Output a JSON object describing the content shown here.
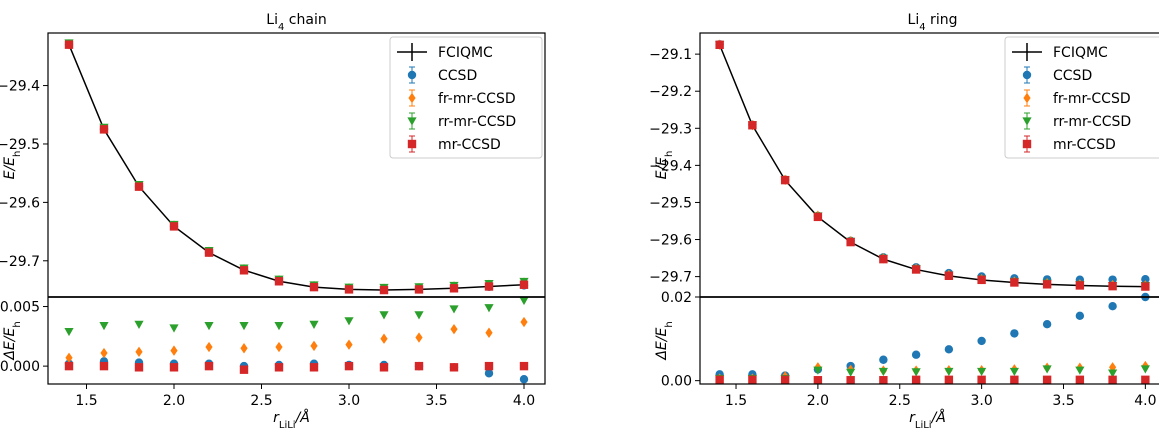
{
  "chart_data": [
    {
      "type": "scatter",
      "title_base": "Li",
      "title_sub": "4",
      "title_rest": " chain",
      "xlabel_base": "r",
      "xlabel_sub": "LiLi",
      "xlabel_rest": "/Å",
      "ylabel_top_base": "E/E",
      "ylabel_top_sub": "h",
      "ylabel_bottom_base": "ΔE/E",
      "ylabel_bottom_sub": "h",
      "xlim": [
        1.28,
        4.12
      ],
      "xticks": [
        1.5,
        2.0,
        2.5,
        3.0,
        3.5,
        4.0
      ],
      "xtick_labels": [
        "1.5",
        "2.0",
        "2.5",
        "3.0",
        "3.5",
        "4.0"
      ],
      "top_ylim": [
        -29.762,
        -29.31
      ],
      "top_yticks": [
        -29.4,
        -29.5,
        -29.6,
        -29.7
      ],
      "top_ytick_labels": [
        "−29.4",
        "−29.5",
        "−29.6",
        "−29.7"
      ],
      "bottom_ylim": [
        -0.0015,
        0.0058
      ],
      "bottom_yticks": [
        0.0,
        0.005
      ],
      "bottom_ytick_labels": [
        "0.000",
        "0.005"
      ],
      "legend_position": "top-right",
      "x": [
        1.4,
        1.6,
        1.8,
        2.0,
        2.2,
        2.4,
        2.6,
        2.8,
        3.0,
        3.2,
        3.4,
        3.6,
        3.8,
        4.0
      ],
      "reference": {
        "name": "FCIQMC",
        "values": [
          -29.33,
          -29.475,
          -29.573,
          -29.641,
          -29.686,
          -29.716,
          -29.735,
          -29.745,
          -29.749,
          -29.75,
          -29.749,
          -29.747,
          -29.744,
          -29.741
        ]
      },
      "series": [
        {
          "name": "CCSD",
          "color": "#1f77b4",
          "marker": "circle",
          "diff": [
            0.0002,
            0.0004,
            0.0003,
            0.0002,
            0.0002,
            0.0,
            0.0001,
            0.0002,
            0.0001,
            0.0001,
            0.0,
            -0.0001,
            -0.0006,
            -0.0011
          ]
        },
        {
          "name": "fr-mr-CCSD",
          "color": "#ff7f0e",
          "marker": "diamond",
          "diff": [
            0.0007,
            0.0011,
            0.0012,
            0.0013,
            0.0016,
            0.0015,
            0.0016,
            0.0017,
            0.0018,
            0.0023,
            0.0024,
            0.0031,
            0.0028,
            0.0037
          ]
        },
        {
          "name": "rr-mr-CCSD",
          "color": "#2ca02c",
          "marker": "triangle-down",
          "diff": [
            0.0029,
            0.0034,
            0.0035,
            0.0032,
            0.0034,
            0.0034,
            0.0034,
            0.0035,
            0.0038,
            0.0043,
            0.0043,
            0.0048,
            0.0049,
            0.0055
          ]
        },
        {
          "name": "mr-CCSD",
          "color": "#d62728",
          "marker": "square",
          "diff": [
            0.0,
            0.0,
            -0.0001,
            -0.0001,
            0.0,
            -0.0003,
            -0.0001,
            -0.0001,
            0.0,
            -0.0001,
            0.0,
            -0.0001,
            0.0,
            0.0
          ]
        }
      ]
    },
    {
      "type": "scatter",
      "title_base": "Li",
      "title_sub": "4",
      "title_rest": " ring",
      "xlabel_base": "r",
      "xlabel_sub": "LiLi",
      "xlabel_rest": "/Å",
      "ylabel_top_base": "E/E",
      "ylabel_top_sub": "h",
      "ylabel_bottom_base": "ΔE/E",
      "ylabel_bottom_sub": "h",
      "xlim": [
        1.28,
        4.12
      ],
      "xticks": [
        1.5,
        2.0,
        2.5,
        3.0,
        3.5,
        4.0
      ],
      "xtick_labels": [
        "1.5",
        "2.0",
        "2.5",
        "3.0",
        "3.5",
        "4.0"
      ],
      "top_ylim": [
        -29.755,
        -29.043
      ],
      "top_yticks": [
        -29.1,
        -29.2,
        -29.3,
        -29.4,
        -29.5,
        -29.6,
        -29.7
      ],
      "top_ytick_labels": [
        "−29.1",
        "−29.2",
        "−29.3",
        "−29.4",
        "−29.5",
        "−29.6",
        "−29.7"
      ],
      "bottom_ylim": [
        -0.0008,
        0.02
      ],
      "bottom_yticks": [
        0.0,
        0.02
      ],
      "bottom_ytick_labels": [
        "0.00",
        "0.02"
      ],
      "legend_position": "top-right",
      "x": [
        1.4,
        1.6,
        1.8,
        2.0,
        2.2,
        2.4,
        2.6,
        2.8,
        3.0,
        3.2,
        3.4,
        3.6,
        3.8,
        4.0
      ],
      "reference": {
        "name": "FCIQMC",
        "values": [
          -29.075,
          -29.292,
          -29.44,
          -29.539,
          -29.607,
          -29.653,
          -29.681,
          -29.698,
          -29.709,
          -29.716,
          -29.721,
          -29.724,
          -29.726,
          -29.727
        ]
      },
      "series": [
        {
          "name": "CCSD",
          "color": "#1f77b4",
          "marker": "circle",
          "diff": [
            0.0015,
            0.0015,
            0.0012,
            0.0027,
            0.0035,
            0.005,
            0.0062,
            0.0075,
            0.0095,
            0.0113,
            0.0135,
            0.0155,
            0.0178,
            0.02
          ]
        },
        {
          "name": "fr-mr-CCSD",
          "color": "#ff7f0e",
          "marker": "diamond",
          "diff": [
            0.0005,
            0.0005,
            0.001,
            0.0032,
            0.0026,
            0.0024,
            0.0024,
            0.0025,
            0.0025,
            0.0027,
            0.0031,
            0.0031,
            0.0032,
            0.0035
          ]
        },
        {
          "name": "rr-mr-CCSD",
          "color": "#2ca02c",
          "marker": "triangle-down",
          "diff": [
            0.0005,
            0.0005,
            0.0005,
            0.0025,
            0.002,
            0.0022,
            0.0021,
            0.0022,
            0.0022,
            0.0022,
            0.0028,
            0.0025,
            0.0018,
            0.0028
          ]
        },
        {
          "name": "mr-CCSD",
          "color": "#d62728",
          "marker": "square",
          "diff": [
            0.0002,
            0.0002,
            0.0002,
            0.0001,
            0.0001,
            0.0001,
            0.0002,
            0.0002,
            0.0002,
            0.0002,
            0.0002,
            0.0002,
            0.0002,
            0.0002
          ]
        }
      ]
    }
  ]
}
